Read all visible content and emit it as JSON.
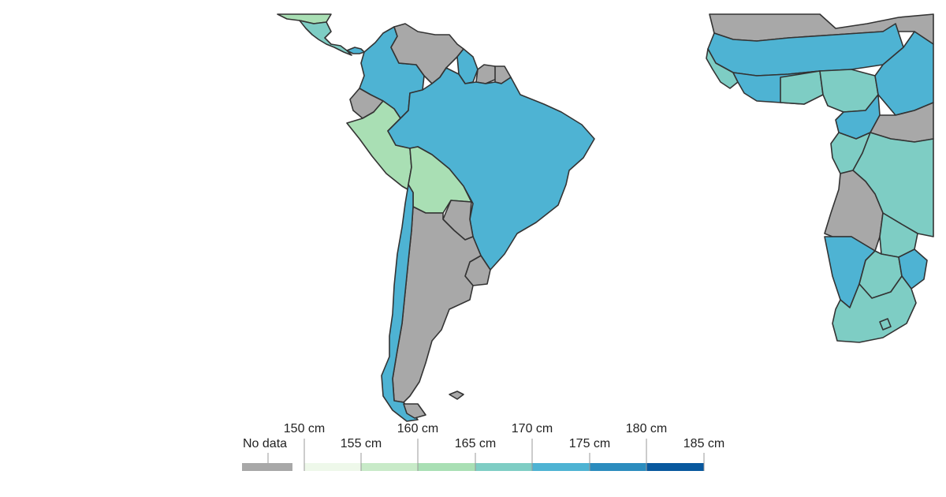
{
  "map": {
    "regions_shown": [
      "South America",
      "Central America (partial)",
      "Africa (partial)"
    ],
    "colors": {
      "no_data": "#a8a8a8",
      "bin_150_155": "#eef8ea",
      "bin_155_160": "#c8eac8",
      "bin_160_165": "#a9dfb4",
      "bin_165_170": "#7ecdc4",
      "bin_170_175": "#4eb3d3",
      "bin_175_180": "#2b8cbe",
      "bin_180_185": "#08589e",
      "border": "#333333"
    }
  },
  "legend": {
    "no_data_label": "No data",
    "tick_labels": [
      "150 cm",
      "155 cm",
      "160 cm",
      "165 cm",
      "170 cm",
      "175 cm",
      "180 cm",
      "185 cm"
    ]
  }
}
